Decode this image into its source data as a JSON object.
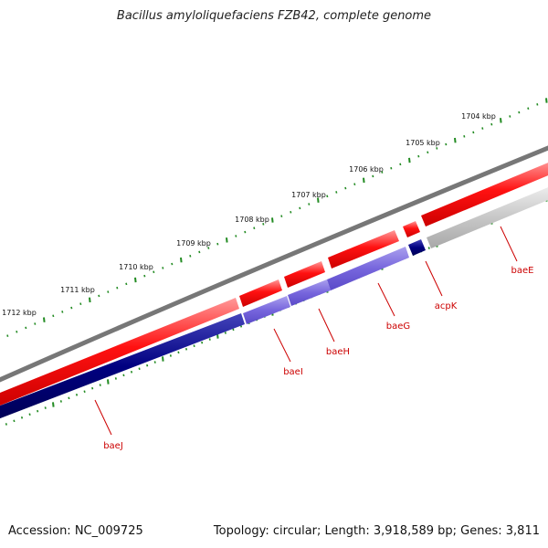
{
  "title": "Bacillus amyloliquefaciens FZB42, complete genome",
  "footer": {
    "accession": "Accession: NC_009725",
    "summary": "Topology: circular; Length: 3,918,589 bp; Genes: 3,811"
  },
  "scale_labels": [
    "1704 kbp",
    "1705 kbp",
    "1706 kbp",
    "1707 kbp",
    "1708 kbp",
    "1709 kbp",
    "1710 kbp",
    "1711 kbp",
    "1712 kbp"
  ],
  "genes": [
    {
      "name": "baeE",
      "strand": "minus",
      "color": "#c0c0c0"
    },
    {
      "name": "acpK",
      "strand": "minus",
      "color": "#000080"
    },
    {
      "name": "baeG",
      "strand": "minus",
      "color": "#7766dd"
    },
    {
      "name": "baeH",
      "strand": "minus",
      "color": "#7766dd"
    },
    {
      "name": "baeI",
      "strand": "minus",
      "color": "#7766dd"
    },
    {
      "name": "baeJ",
      "strand": "minus",
      "color": "#000080"
    }
  ],
  "colors": {
    "backbone": "#777777",
    "forward_cds": "#ee0000",
    "scale_ticks": "#228b22",
    "gene_labels": "#cc0000"
  }
}
